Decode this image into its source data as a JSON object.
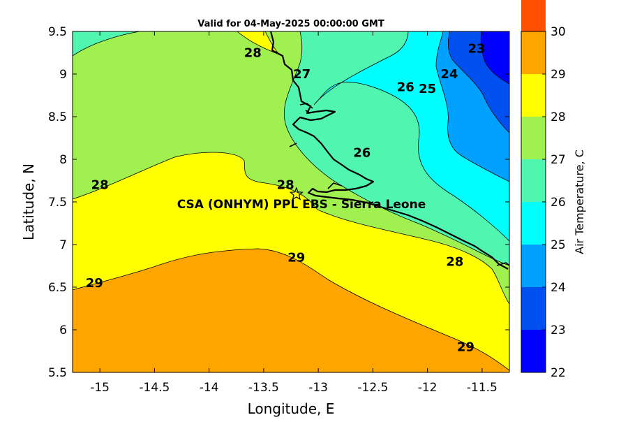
{
  "chart_data": {
    "type": "contour-map",
    "title": "Valid for 04-May-2025 00:00:00 GMT",
    "xlabel": "Longitude, E",
    "ylabel": "Latitude, N",
    "xlim": [
      -15.25,
      -11.25
    ],
    "ylim": [
      5.5,
      9.5
    ],
    "x_ticks": [
      "-15",
      "-14.5",
      "-14",
      "-13.5",
      "-13",
      "-12.5",
      "-12",
      "-11.5"
    ],
    "y_ticks": [
      "5.5",
      "6",
      "6.5",
      "7",
      "7.5",
      "8",
      "8.5",
      "9",
      "9.5"
    ],
    "colorbar": {
      "label": "Air Temperature, C",
      "range": [
        22,
        30
      ],
      "ticks": [
        "22",
        "23",
        "24",
        "25",
        "26",
        "27",
        "28",
        "29",
        "30"
      ],
      "colors": [
        "#0000ff",
        "#0050f0",
        "#00a0ff",
        "#00ffff",
        "#50f5b0",
        "#a0f050",
        "#ffff00",
        "#ffa500",
        "#ff5000"
      ]
    },
    "contour_labels": [
      {
        "text": "28",
        "lon": -13.6,
        "lat": 9.2
      },
      {
        "text": "27",
        "lon": -13.15,
        "lat": 8.95
      },
      {
        "text": "26",
        "lon": -12.2,
        "lat": 8.8
      },
      {
        "text": "25",
        "lon": -12.0,
        "lat": 8.78
      },
      {
        "text": "24",
        "lon": -11.8,
        "lat": 8.95
      },
      {
        "text": "23",
        "lon": -11.55,
        "lat": 9.25
      },
      {
        "text": "26",
        "lon": -12.6,
        "lat": 8.03
      },
      {
        "text": "28",
        "lon": -15.0,
        "lat": 7.65
      },
      {
        "text": "28",
        "lon": -13.3,
        "lat": 7.65
      },
      {
        "text": "29",
        "lon": -13.2,
        "lat": 6.8
      },
      {
        "text": "28",
        "lon": -11.75,
        "lat": 6.75
      },
      {
        "text": "29",
        "lon": -15.05,
        "lat": 6.5
      },
      {
        "text": "29",
        "lon": -11.65,
        "lat": 5.75
      }
    ],
    "station": {
      "label": "CSA (ONHYM) PPL EBS  - Sierra Leone",
      "lon": -13.2,
      "lat": 7.59
    }
  }
}
